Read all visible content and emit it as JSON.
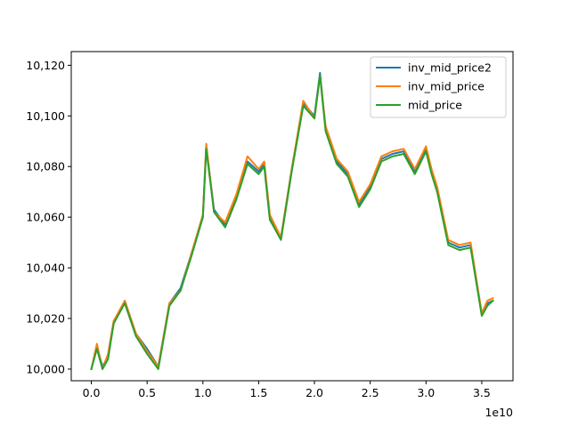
{
  "chart_data": {
    "type": "line",
    "title": "",
    "xlabel": "",
    "ylabel": "",
    "x_offset_text": "1e10",
    "xlim": [
      -0.18,
      3.78
    ],
    "ylim": [
      9995.4,
      10125.4
    ],
    "x_ticks": [
      {
        "value": 0.0,
        "label": "0.0"
      },
      {
        "value": 0.5,
        "label": "0.5"
      },
      {
        "value": 1.0,
        "label": "1.0"
      },
      {
        "value": 1.5,
        "label": "1.5"
      },
      {
        "value": 2.0,
        "label": "2.0"
      },
      {
        "value": 2.5,
        "label": "2.5"
      },
      {
        "value": 3.0,
        "label": "3.0"
      },
      {
        "value": 3.5,
        "label": "3.5"
      }
    ],
    "y_ticks": [
      {
        "value": 10000,
        "label": "10,000"
      },
      {
        "value": 10020,
        "label": "10,020"
      },
      {
        "value": 10040,
        "label": "10,040"
      },
      {
        "value": 10060,
        "label": "10,060"
      },
      {
        "value": 10080,
        "label": "10,080"
      },
      {
        "value": 10100,
        "label": "10,100"
      },
      {
        "value": 10120,
        "label": "10,120"
      }
    ],
    "grid": false,
    "legend_position": "top-right",
    "series": [
      {
        "name": "inv_mid_price2",
        "color": "#1f77b4",
        "x": [
          0.0,
          0.05,
          0.1,
          0.15,
          0.2,
          0.3,
          0.4,
          0.5,
          0.6,
          0.7,
          0.8,
          0.9,
          1.0,
          1.03,
          1.1,
          1.2,
          1.3,
          1.4,
          1.5,
          1.55,
          1.6,
          1.7,
          1.8,
          1.9,
          2.0,
          2.05,
          2.1,
          2.2,
          2.3,
          2.4,
          2.5,
          2.6,
          2.7,
          2.8,
          2.9,
          3.0,
          3.05,
          3.1,
          3.2,
          3.3,
          3.4,
          3.5,
          3.55,
          3.6
        ],
        "y": [
          10000.0,
          10009.0,
          10001.0,
          10005.0,
          10018.0,
          10027.0,
          10014.0,
          10008.0,
          10001.0,
          10026.0,
          10032.0,
          10046.0,
          10060.0,
          10088.0,
          10063.0,
          10057.0,
          10068.0,
          10082.0,
          10078.0,
          10081.0,
          10060.0,
          10052.0,
          10080.0,
          10105.0,
          10100.0,
          10117.0,
          10095.0,
          10082.0,
          10077.0,
          10065.0,
          10072.0,
          10083.0,
          10085.0,
          10086.0,
          10078.0,
          10087.0,
          10078.0,
          10071.0,
          10050.0,
          10048.0,
          10049.0,
          10022.0,
          10026.0,
          10027.0
        ]
      },
      {
        "name": "inv_mid_price",
        "color": "#ff7f0e",
        "x": [
          0.0,
          0.05,
          0.1,
          0.15,
          0.2,
          0.3,
          0.4,
          0.5,
          0.6,
          0.7,
          0.8,
          0.9,
          1.0,
          1.03,
          1.1,
          1.2,
          1.3,
          1.4,
          1.5,
          1.55,
          1.6,
          1.7,
          1.8,
          1.9,
          2.0,
          2.05,
          2.1,
          2.2,
          2.3,
          2.4,
          2.5,
          2.6,
          2.7,
          2.8,
          2.9,
          3.0,
          3.05,
          3.1,
          3.2,
          3.3,
          3.4,
          3.5,
          3.55,
          3.6
        ],
        "y": [
          10000.0,
          10010.0,
          10000.0,
          10006.0,
          10019.0,
          10027.0,
          10014.0,
          10007.0,
          10001.0,
          10026.0,
          10031.0,
          10046.0,
          10061.0,
          10089.0,
          10062.0,
          10058.0,
          10069.0,
          10084.0,
          10079.0,
          10082.0,
          10061.0,
          10052.0,
          10080.0,
          10106.0,
          10099.0,
          10116.0,
          10096.0,
          10083.0,
          10078.0,
          10066.0,
          10073.0,
          10084.0,
          10086.0,
          10087.0,
          10079.0,
          10088.0,
          10079.0,
          10072.0,
          10051.0,
          10049.0,
          10050.0,
          10022.0,
          10027.0,
          10028.0
        ]
      },
      {
        "name": "mid_price",
        "color": "#2ca02c",
        "x": [
          0.0,
          0.05,
          0.1,
          0.15,
          0.2,
          0.3,
          0.4,
          0.5,
          0.6,
          0.7,
          0.8,
          0.9,
          1.0,
          1.03,
          1.1,
          1.2,
          1.3,
          1.4,
          1.5,
          1.55,
          1.6,
          1.7,
          1.8,
          1.9,
          2.0,
          2.05,
          2.1,
          2.2,
          2.3,
          2.4,
          2.5,
          2.6,
          2.7,
          2.8,
          2.9,
          3.0,
          3.05,
          3.1,
          3.2,
          3.3,
          3.4,
          3.5,
          3.55,
          3.6
        ],
        "y": [
          10000.0,
          10008.0,
          10000.0,
          10004.0,
          10018.0,
          10026.0,
          10013.0,
          10006.0,
          10000.0,
          10025.0,
          10031.0,
          10045.0,
          10060.0,
          10087.0,
          10062.0,
          10056.0,
          10067.0,
          10081.0,
          10077.0,
          10080.0,
          10059.0,
          10051.0,
          10079.0,
          10104.0,
          10099.0,
          10116.0,
          10094.0,
          10081.0,
          10076.0,
          10064.0,
          10071.0,
          10082.0,
          10084.0,
          10085.0,
          10077.0,
          10086.0,
          10077.0,
          10070.0,
          10049.0,
          10047.0,
          10048.0,
          10021.0,
          10025.0,
          10027.0
        ]
      }
    ]
  }
}
